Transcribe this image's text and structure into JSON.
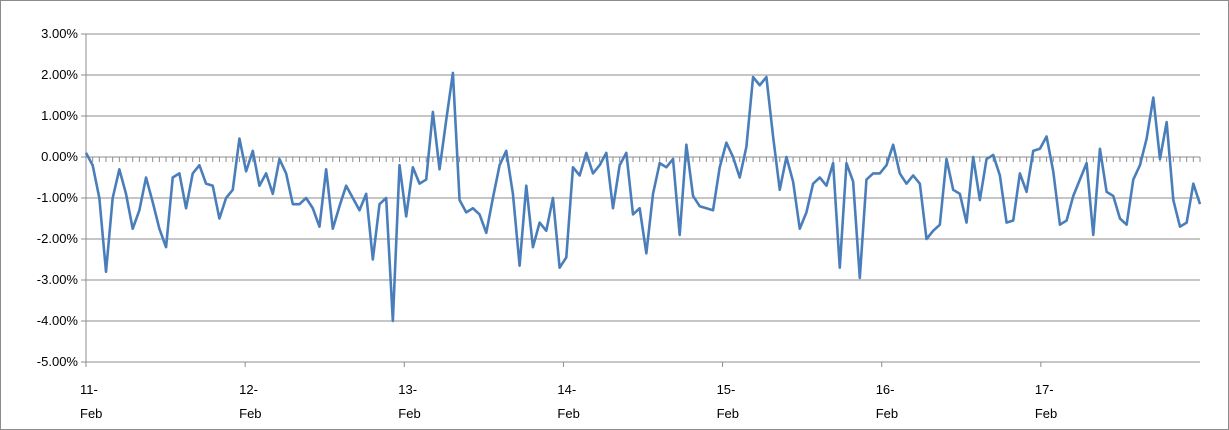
{
  "chart_data": {
    "type": "line",
    "title": "",
    "xlabel": "",
    "ylabel": "",
    "ylim": [
      -5,
      3
    ],
    "y_ticks": [
      3,
      2,
      1,
      0,
      -1,
      -2,
      -3,
      -4,
      -5
    ],
    "y_tick_labels": [
      "3.00%",
      "2.00%",
      "1.00%",
      "0.00%",
      "-1.00%",
      "-2.00%",
      "-3.00%",
      "-4.00%",
      "-5.00%"
    ],
    "x_tick_labels": [
      {
        "line1": "11-",
        "line2": "Feb"
      },
      {
        "line1": "12-",
        "line2": "Feb"
      },
      {
        "line1": "13-",
        "line2": "Feb"
      },
      {
        "line1": "14-",
        "line2": "Feb"
      },
      {
        "line1": "15-",
        "line2": "Feb"
      },
      {
        "line1": "16-",
        "line2": "Feb"
      },
      {
        "line1": "17-",
        "line2": "Feb"
      }
    ],
    "grid": true,
    "legend": "none",
    "series_color": "#4a7ebb",
    "series": [
      {
        "values": [
          0.1,
          -0.2,
          -1.0,
          -2.8,
          -1.0,
          -0.3,
          -0.9,
          -1.75,
          -1.3,
          -0.5,
          -1.1,
          -1.75,
          -2.2,
          -0.5,
          -0.4,
          -1.25,
          -0.4,
          -0.2,
          -0.65,
          -0.7,
          -1.5,
          -1.0,
          -0.8,
          0.45,
          -0.35,
          0.15,
          -0.7,
          -0.4,
          -0.9,
          -0.05,
          -0.4,
          -1.15,
          -1.15,
          -1.0,
          -1.25,
          -1.7,
          -0.3,
          -1.75,
          -1.2,
          -0.7,
          -1.0,
          -1.3,
          -0.9,
          -2.5,
          -1.15,
          -1.0,
          -4.0,
          -0.2,
          -1.45,
          -0.25,
          -0.65,
          -0.55,
          1.1,
          -0.3,
          0.9,
          2.05,
          -1.05,
          -1.35,
          -1.25,
          -1.4,
          -1.85,
          -1.0,
          -0.2,
          0.15,
          -0.9,
          -2.65,
          -0.7,
          -2.2,
          -1.6,
          -1.8,
          -1.0,
          -2.7,
          -2.45,
          -0.25,
          -0.45,
          0.1,
          -0.4,
          -0.2,
          0.1,
          -1.25,
          -0.2,
          0.1,
          -1.4,
          -1.25,
          -2.35,
          -0.9,
          -0.15,
          -0.25,
          -0.05,
          -1.9,
          0.3,
          -0.95,
          -1.2,
          -1.25,
          -1.3,
          -0.25,
          0.35,
          0.0,
          -0.5,
          0.25,
          1.95,
          1.75,
          1.95,
          0.5,
          -0.8,
          0.0,
          -0.6,
          -1.75,
          -1.35,
          -0.65,
          -0.5,
          -0.7,
          -0.15,
          -2.7,
          -0.15,
          -0.6,
          -2.95,
          -0.55,
          -0.4,
          -0.4,
          -0.2,
          0.3,
          -0.4,
          -0.65,
          -0.45,
          -0.65,
          -2.0,
          -1.8,
          -1.65,
          -0.05,
          -0.8,
          -0.9,
          -1.6,
          0.0,
          -1.05,
          -0.05,
          0.05,
          -0.45,
          -1.6,
          -1.55,
          -0.4,
          -0.85,
          0.15,
          0.2,
          0.5,
          -0.35,
          -1.65,
          -1.55,
          -0.95,
          -0.55,
          -0.15,
          -1.9,
          0.2,
          -0.85,
          -0.95,
          -1.5,
          -1.65,
          -0.55,
          -0.2,
          0.45,
          1.45,
          -0.05,
          0.85,
          -1.05,
          -1.7,
          -1.6,
          -0.65,
          -1.15
        ]
      }
    ]
  }
}
